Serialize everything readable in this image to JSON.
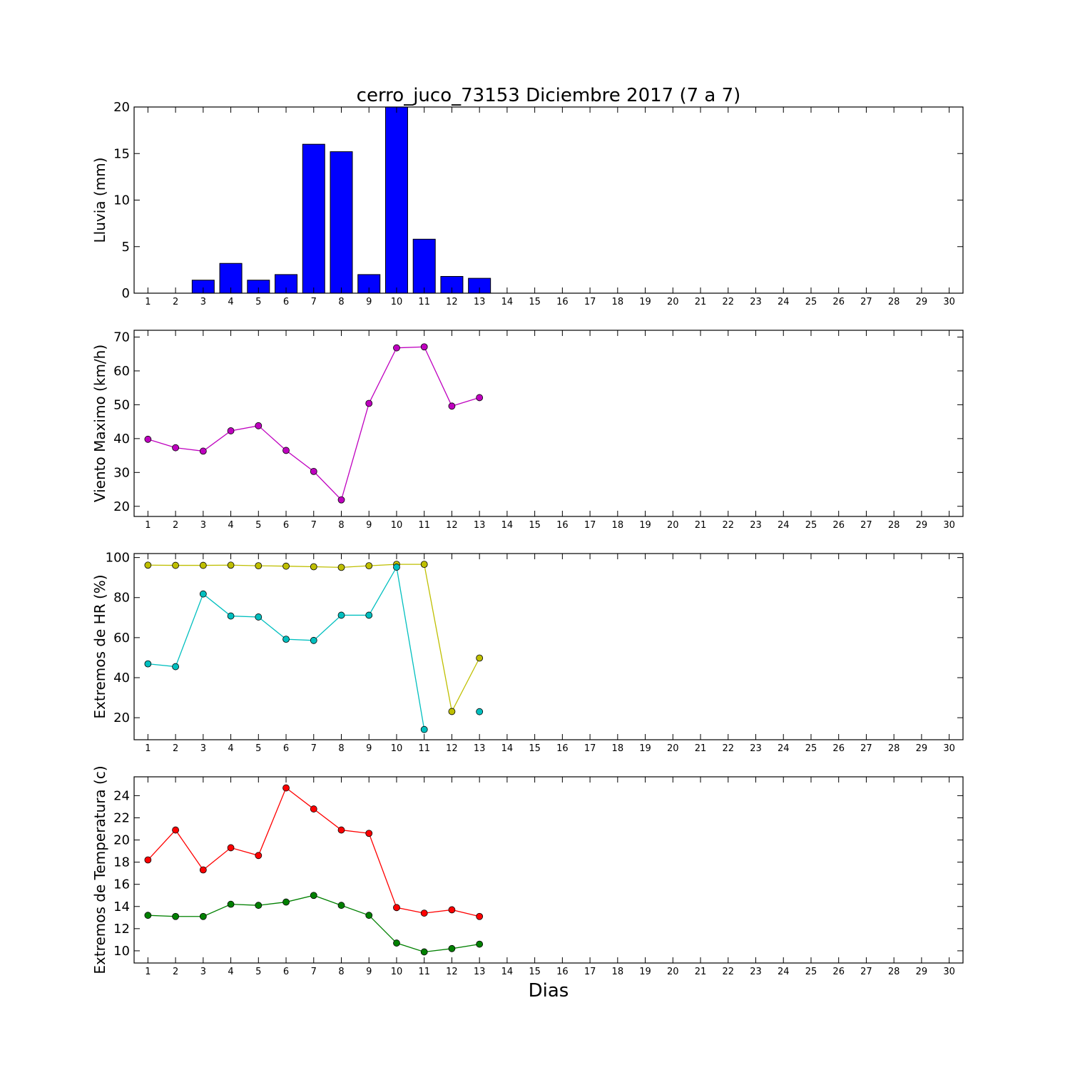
{
  "chart_data": {
    "type": "multi-panel",
    "title": "cerro_juco_73153 Diciembre 2017  (7 a 7)",
    "xlabel": "Dias",
    "x": [
      1,
      2,
      3,
      4,
      5,
      6,
      7,
      8,
      9,
      10,
      11,
      12,
      13,
      14,
      15,
      16,
      17,
      18,
      19,
      20,
      21,
      22,
      23,
      24,
      25,
      26,
      27,
      28,
      29,
      30
    ],
    "panels": [
      {
        "type": "bar",
        "ylabel": "Lluvia (mm)",
        "ylim": [
          0,
          20
        ],
        "yticks": [
          0,
          5,
          10,
          15,
          20
        ],
        "series": [
          {
            "color": "#0000ff",
            "values": [
              0,
              0,
              1.4,
              3.2,
              1.4,
              2.0,
              16.0,
              15.2,
              2.0,
              20.0,
              5.8,
              1.8,
              1.6,
              null,
              null,
              null,
              null,
              null,
              null,
              null,
              null,
              null,
              null,
              null,
              null,
              null,
              null,
              null,
              null,
              null
            ]
          }
        ]
      },
      {
        "type": "line",
        "ylabel": "Viento Maximo (km/h)",
        "ylim": [
          17,
          72
        ],
        "yticks": [
          20,
          30,
          40,
          50,
          60,
          70
        ],
        "series": [
          {
            "color": "#bf00bf",
            "values": [
              39.8,
              37.3,
              36.3,
              42.3,
              43.8,
              36.5,
              30.3,
              21.9,
              50.4,
              66.8,
              67.1,
              49.6,
              52.1,
              null,
              null,
              null,
              null,
              null,
              null,
              null,
              null,
              null,
              null,
              null,
              null,
              null,
              null,
              null,
              null,
              null
            ]
          }
        ]
      },
      {
        "type": "line",
        "ylabel": "Extremos de HR (%)",
        "ylim": [
          9,
          102
        ],
        "yticks": [
          20,
          40,
          60,
          80,
          100
        ],
        "series": [
          {
            "color": "#bfbf00",
            "values": [
              96.2,
              96.1,
              96.1,
              96.2,
              95.9,
              95.7,
              95.4,
              95.1,
              95.9,
              96.6,
              96.6,
              23.1,
              49.8,
              null,
              null,
              null,
              null,
              null,
              null,
              null,
              null,
              null,
              null,
              null,
              null,
              null,
              null,
              null,
              null,
              null
            ]
          },
          {
            "color": "#00bfbf",
            "values": [
              46.9,
              45.5,
              81.8,
              70.8,
              70.3,
              59.2,
              58.6,
              71.2,
              71.2,
              95.2,
              14.1,
              null,
              23.0,
              null,
              null,
              null,
              null,
              null,
              null,
              null,
              null,
              null,
              null,
              null,
              null,
              null,
              null,
              null,
              null,
              null
            ]
          }
        ]
      },
      {
        "type": "line",
        "ylabel": "Extremos de Temperatura (c)",
        "ylim": [
          8.9,
          25.7
        ],
        "yticks": [
          10,
          12,
          14,
          16,
          18,
          20,
          22,
          24
        ],
        "series": [
          {
            "color": "#ff0000",
            "values": [
              18.2,
              20.9,
              17.3,
              19.3,
              18.6,
              24.7,
              22.8,
              20.9,
              20.6,
              13.9,
              13.4,
              13.7,
              13.1,
              null,
              null,
              null,
              null,
              null,
              null,
              null,
              null,
              null,
              null,
              null,
              null,
              null,
              null,
              null,
              null,
              null
            ]
          },
          {
            "color": "#008000",
            "values": [
              13.2,
              13.1,
              13.1,
              14.2,
              14.1,
              14.4,
              15.0,
              14.1,
              13.2,
              10.7,
              9.9,
              10.2,
              10.6,
              null,
              null,
              null,
              null,
              null,
              null,
              null,
              null,
              null,
              null,
              null,
              null,
              null,
              null,
              null,
              null,
              null
            ]
          }
        ]
      }
    ]
  }
}
